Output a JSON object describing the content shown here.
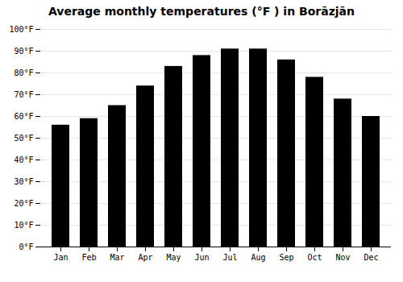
{
  "chart_data": {
    "type": "bar",
    "title": "Average monthly temperatures (°F ) in Borāzjān",
    "categories": [
      "Jan",
      "Feb",
      "Mar",
      "Apr",
      "May",
      "Jun",
      "Jul",
      "Aug",
      "Sep",
      "Oct",
      "Nov",
      "Dec"
    ],
    "values": [
      56,
      59,
      65,
      74,
      83,
      88,
      91,
      91,
      86,
      78,
      68,
      60
    ],
    "ylim": [
      0,
      100
    ],
    "yticks": [
      {
        "value": 0,
        "label": "0°F"
      },
      {
        "value": 10,
        "label": "10°F"
      },
      {
        "value": 20,
        "label": "20°F"
      },
      {
        "value": 30,
        "label": "30°F"
      },
      {
        "value": 40,
        "label": "40°F"
      },
      {
        "value": 50,
        "label": "50°F"
      },
      {
        "value": 60,
        "label": "60°F"
      },
      {
        "value": 70,
        "label": "70°F"
      },
      {
        "value": 80,
        "label": "80°F"
      },
      {
        "value": 90,
        "label": "90°F"
      },
      {
        "value": 100,
        "label": "100°F"
      }
    ],
    "grid": true
  }
}
